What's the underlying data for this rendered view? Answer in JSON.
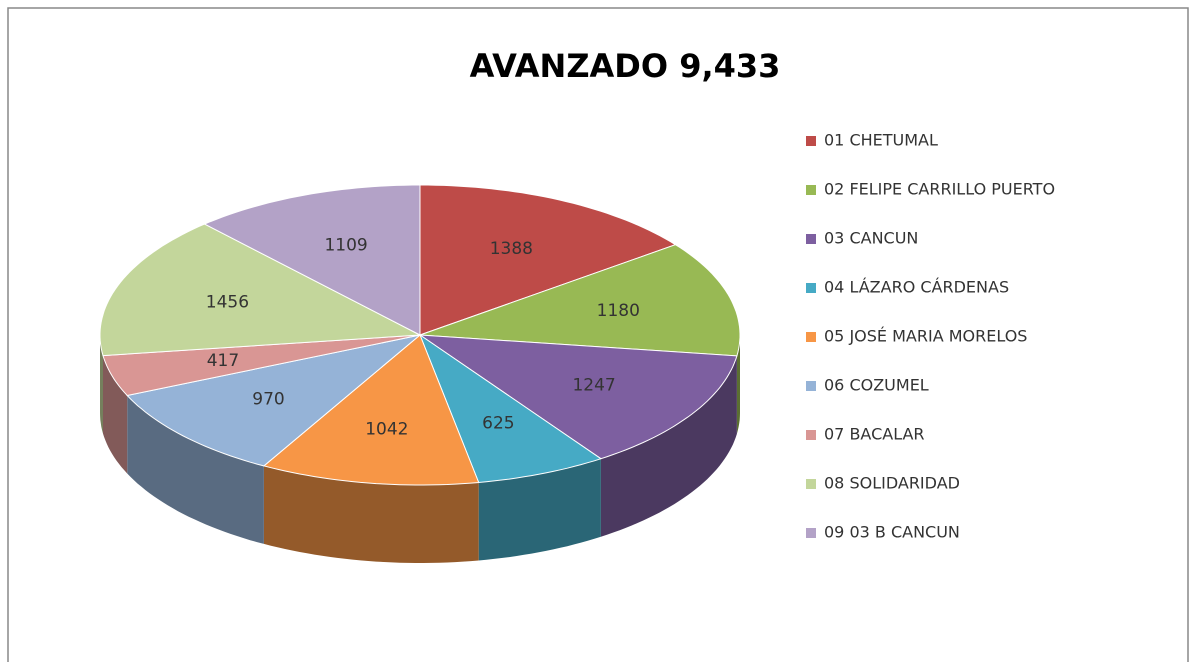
{
  "chart_data": {
    "type": "pie",
    "title": "AVANZADO 9,433",
    "categories": [
      "01 CHETUMAL",
      "02 FELIPE CARRILLO PUERTO",
      "03 CANCUN",
      "04 LÁZARO CÁRDENAS",
      "05 JOSÉ MARIA MORELOS",
      "06 COZUMEL",
      "07 BACALAR",
      "08 SOLIDARIDAD",
      "09 03 B CANCUN"
    ],
    "values": [
      1388,
      1180,
      1247,
      625,
      1042,
      970,
      417,
      1456,
      1109
    ],
    "colors": [
      "#be4b48",
      "#98b954",
      "#7d5fa0",
      "#46aac5",
      "#f79646",
      "#95b3d7",
      "#d99694",
      "#c3d69b",
      "#b3a2c7"
    ],
    "legend": "right"
  }
}
